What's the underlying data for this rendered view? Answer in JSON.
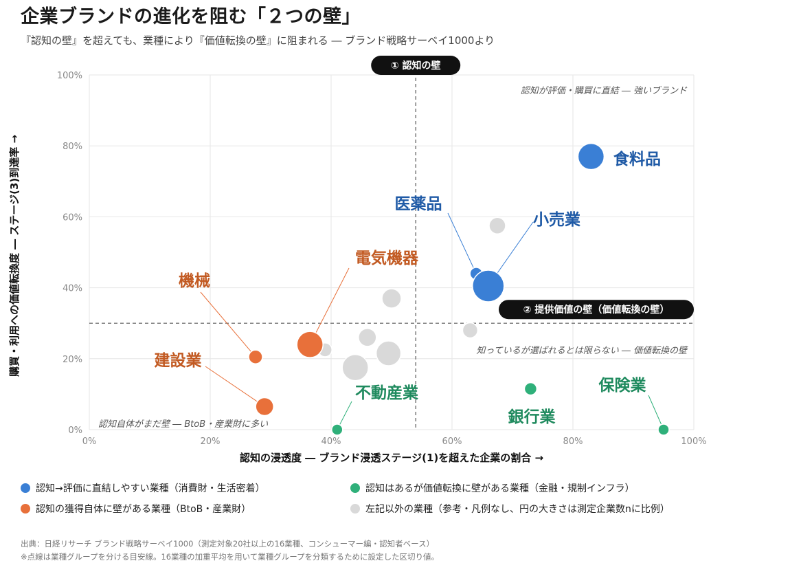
{
  "header": {
    "title": "企業ブランドの進化を阻む「２つの壁」",
    "subtitle": "『認知の壁』を超えても、業種により『価値転換の壁』に阻まれる ― ブランド戦略サーベイ1000より"
  },
  "colors": {
    "blue": "#3a7fd5",
    "orange": "#e8703a",
    "green": "#2fb07a",
    "gray": "#d9d9d9",
    "blue_text": "#1f5aa6",
    "orange_text": "#c25a22",
    "green_text": "#1f8a5e"
  },
  "chart_data": {
    "type": "scatter",
    "xlabel": "認知の浸透度 ― ブランド浸透ステージ(1)を超えた企業の割合 →",
    "ylabel": "購買・利用への価値転換度 ― ステージ(3)到達率 →",
    "xlim": [
      0,
      100
    ],
    "ylim": [
      0,
      100
    ],
    "x_ticks": [
      "0%",
      "20%",
      "40%",
      "60%",
      "80%",
      "100%"
    ],
    "y_ticks": [
      "0%",
      "20%",
      "40%",
      "60%",
      "80%",
      "100%"
    ],
    "grid": true,
    "threshold_x": 54,
    "threshold_y": 30,
    "badge_x": "① 認知の壁",
    "badge_y": "② 提供価値の壁（価値転換の壁）",
    "annotations": {
      "top_right": "認知が評価・購買に直結 ― 強いブランド",
      "mid_right": "知っているが選ばれるとは限らない ― 価値転換の壁",
      "bottom_left": "認知自体がまだ壁 ― BtoB・産業財に多い"
    },
    "points": [
      {
        "label": "食料品",
        "group": "blue",
        "x": 83,
        "y": 77,
        "size": 19
      },
      {
        "label": "医薬品",
        "group": "blue",
        "x": 64,
        "y": 44,
        "size": 9
      },
      {
        "label": "小売業",
        "group": "blue",
        "x": 66,
        "y": 40.5,
        "size": 23
      },
      {
        "label": "電気機器",
        "group": "orange",
        "x": 36.5,
        "y": 24,
        "size": 19
      },
      {
        "label": "機械",
        "group": "orange",
        "x": 27.5,
        "y": 20.5,
        "size": 10
      },
      {
        "label": "建設業",
        "group": "orange",
        "x": 29,
        "y": 6.5,
        "size": 13
      },
      {
        "label": "不動産業",
        "group": "green",
        "x": 41,
        "y": 0,
        "size": 8
      },
      {
        "label": "銀行業",
        "group": "green",
        "x": 73,
        "y": 11.5,
        "size": 9
      },
      {
        "label": "保険業",
        "group": "green",
        "x": 95,
        "y": 0,
        "size": 8
      },
      {
        "label": "",
        "group": "gray",
        "x": 67.5,
        "y": 57.5,
        "size": 12
      },
      {
        "label": "",
        "group": "gray",
        "x": 50,
        "y": 37,
        "size": 14
      },
      {
        "label": "",
        "group": "gray",
        "x": 63,
        "y": 28,
        "size": 11
      },
      {
        "label": "",
        "group": "gray",
        "x": 46,
        "y": 26,
        "size": 13
      },
      {
        "label": "",
        "group": "gray",
        "x": 39,
        "y": 22.5,
        "size": 10
      },
      {
        "label": "",
        "group": "gray",
        "x": 49.5,
        "y": 21.5,
        "size": 18
      },
      {
        "label": "",
        "group": "gray",
        "x": 44,
        "y": 17.5,
        "size": 19
      }
    ]
  },
  "legend": {
    "blue": "認知→評価に直結しやすい業種（消費財・生活密着）",
    "green": "認知はあるが価値転換に壁がある業種（金融・規制インフラ）",
    "orange": "認知の獲得自体に壁がある業種（BtoB・産業財）",
    "gray": "左記以外の業種（参考・凡例なし、円の大きさは測定企業数nに比例）"
  },
  "footer": {
    "source": "出典：日経リサーチ ブランド戦略サーベイ1000（測定対象20社以上の16業種、コンシューマー編・認知者ベース）",
    "note": "※点線は業種グループを分ける目安線。16業種の加重平均を用いて業種グループを分類するために設定した区切り値。"
  }
}
